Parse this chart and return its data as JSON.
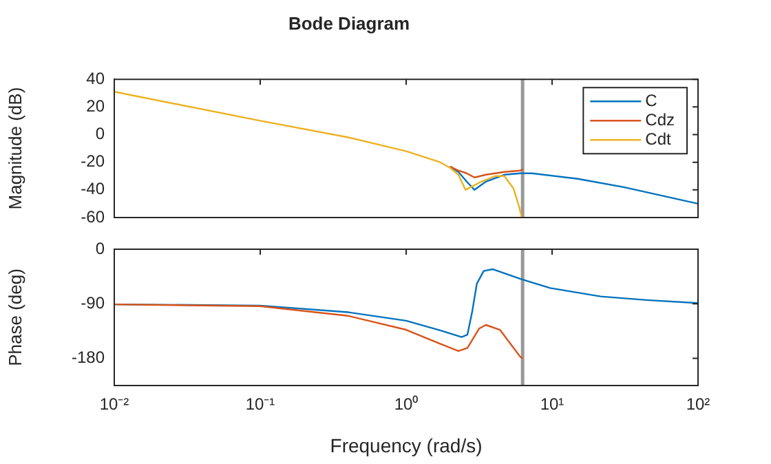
{
  "chart_data": [
    {
      "type": "line",
      "title": "Bode Diagram",
      "ylabel": "Magnitude (dB)",
      "xlim": [
        0.01,
        100
      ],
      "xticks": [
        {
          "value": 0.01,
          "label": null
        },
        {
          "value": 0.1,
          "label": null
        },
        {
          "value": 1,
          "label": null
        },
        {
          "value": 10,
          "label": null
        },
        {
          "value": 100,
          "label": null
        }
      ],
      "ylim": [
        -60,
        40
      ],
      "yticks": [
        -60,
        -40,
        -20,
        0,
        20,
        40
      ],
      "log": "x",
      "grid": false,
      "legend": "top right",
      "tick_labels": "y",
      "ref_lines": [
        {
          "axis": "x",
          "value": 6.28,
          "color": "#999999"
        }
      ],
      "series": [
        {
          "name": "C",
          "color": "#0072bd",
          "x": [
            2.0,
            2.28,
            2.6,
            2.94,
            3.52,
            4.71,
            6.07,
            7.28,
            15,
            31,
            100
          ],
          "values": [
            -23,
            -27,
            -34,
            -40,
            -34,
            -29,
            -28,
            -28,
            -32,
            -38,
            -50
          ]
        },
        {
          "name": "Cdz",
          "color": "#d95319",
          "x": [
            2.0,
            2.28,
            2.6,
            2.94,
            3.52,
            4.71,
            6.07,
            6.28
          ],
          "values": [
            -23,
            -26,
            -28,
            -31,
            -29,
            -27,
            -26,
            -25
          ]
        },
        {
          "name": "Cdt",
          "color": "#edb120",
          "x": [
            0.01,
            0.1,
            0.4,
            1.0,
            1.71,
            2.0,
            2.28,
            2.55,
            3.28,
            4.07,
            4.71,
            5.44,
            5.94,
            6.2
          ],
          "values": [
            31,
            10,
            -2,
            -12,
            -20,
            -24,
            -29,
            -40,
            -34,
            -30,
            -30,
            -39,
            -52,
            -60
          ]
        }
      ]
    },
    {
      "type": "line",
      "xlabel": "Frequency (rad/s)",
      "ylabel": "Phase (deg)",
      "xlim": [
        0.01,
        100
      ],
      "xticks": [
        {
          "value": 0.01,
          "label": "10⁻²"
        },
        {
          "value": 0.1,
          "label": "10⁻¹"
        },
        {
          "value": 1,
          "label": "10⁰"
        },
        {
          "value": 10,
          "label": "10¹"
        },
        {
          "value": 100,
          "label": "10²"
        }
      ],
      "ylim": [
        -225,
        0
      ],
      "yticks": [
        -180,
        -90,
        0
      ],
      "log": "x",
      "grid": false,
      "ref_lines": [
        {
          "axis": "x",
          "value": 6.28,
          "color": "#999999"
        }
      ],
      "series": [
        {
          "color": "#0072bd",
          "x": [
            0.01,
            0.1,
            0.4,
            1.0,
            1.71,
            2.4,
            2.63,
            2.84,
            3.05,
            3.4,
            3.93,
            6.07,
            9.7,
            21.5,
            44.5,
            100
          ],
          "values": [
            -91,
            -93,
            -104,
            -118,
            -134,
            -145,
            -141,
            -102,
            -57,
            -36,
            -33,
            -49,
            -64,
            -78,
            -84,
            -89
          ]
        },
        {
          "color": "#d95319",
          "x": [
            0.01,
            0.1,
            0.4,
            1.0,
            1.71,
            2.28,
            2.63,
            3.16,
            3.52,
            4.39,
            6.07,
            6.28
          ],
          "values": [
            -91,
            -94,
            -110,
            -133,
            -156,
            -168,
            -163,
            -131,
            -125,
            -133,
            -178,
            -180
          ]
        }
      ]
    }
  ]
}
